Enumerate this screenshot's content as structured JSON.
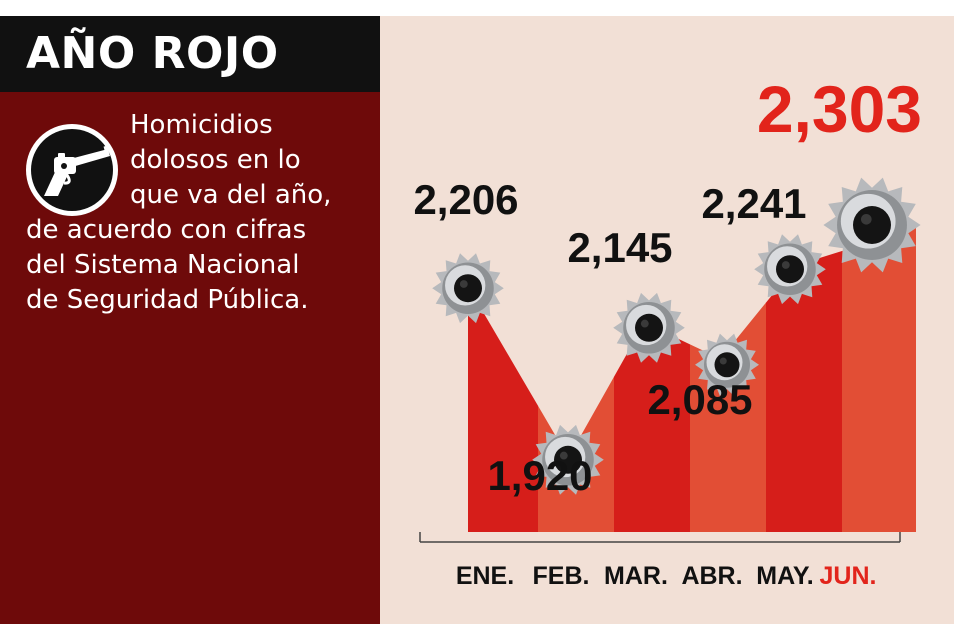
{
  "header": {
    "title": "AÑO ROJO"
  },
  "description": {
    "lines": [
      "Homicidios",
      "dolosos en lo",
      "que va del año,",
      "de acuerdo con cifras",
      "del Sistema Nacional",
      "de Seguridad Pública."
    ],
    "icon": "revolver-icon"
  },
  "colors": {
    "panel_dark_red": "#6e0a0a",
    "title_bar": "#111111",
    "chart_bg": "#f2e0d6",
    "area_red": "#d61e1a",
    "area_orange": "#e24e35",
    "highlight": "#e2241b",
    "label": "#111111"
  },
  "chart_data": {
    "type": "area",
    "categories": [
      "ENE.",
      "FEB.",
      "MAR.",
      "ABR.",
      "MAY.",
      "JUN."
    ],
    "values": [
      2206,
      1920,
      2145,
      2085,
      2241,
      2303
    ],
    "value_labels": [
      "2,206",
      "1,920",
      "2,145",
      "2,085",
      "2,241",
      "2,303"
    ],
    "highlight_index": 5,
    "markers": "bullet-hole-icon"
  }
}
